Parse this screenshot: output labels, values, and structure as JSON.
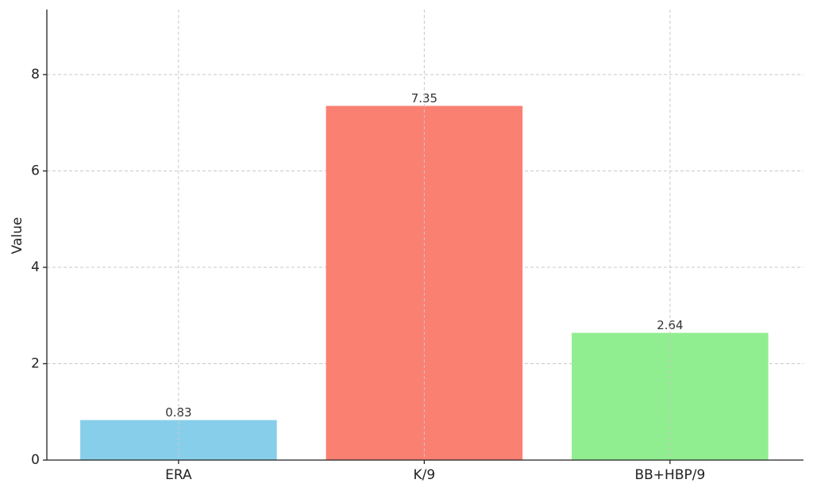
{
  "chart_data": {
    "type": "bar",
    "ylabel": "Value",
    "categories": [
      "ERA",
      "K/9",
      "BB+HBP/9"
    ],
    "values": [
      0.83,
      7.35,
      2.64
    ],
    "colors": [
      "#87ceeb",
      "#fa8072",
      "#90ee90"
    ],
    "ylim": [
      0,
      9.35
    ],
    "yticks": [
      0,
      2,
      4,
      6,
      8
    ],
    "grid": true
  }
}
